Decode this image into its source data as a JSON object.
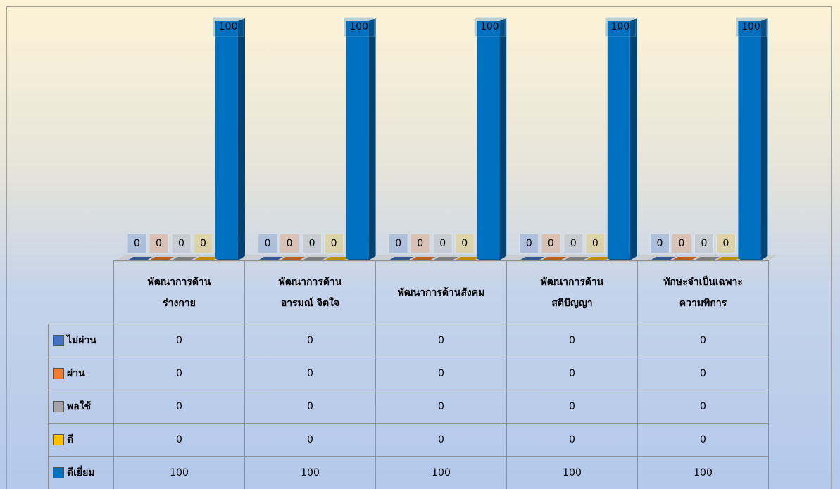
{
  "chart_data": {
    "type": "bar",
    "categories": [
      "พัฒนาการด้าน\nร่างกาย",
      "พัฒนาการด้าน\nอารมณ์ จิตใจ",
      "พัฒนาการด้านสังคม",
      "พัฒนาการด้าน\nสติปัญญา",
      "ทักษะจำเป็นเฉพาะ\nความพิการ"
    ],
    "series": [
      {
        "name": "ไม่ผ่าน",
        "color": "#4472c4",
        "values": [
          0,
          0,
          0,
          0,
          0
        ]
      },
      {
        "name": "ผ่าน",
        "color": "#ed7d31",
        "values": [
          0,
          0,
          0,
          0,
          0
        ]
      },
      {
        "name": "พอใช้",
        "color": "#a5a5a5",
        "values": [
          0,
          0,
          0,
          0,
          0
        ]
      },
      {
        "name": "ดี",
        "color": "#ffc000",
        "values": [
          0,
          0,
          0,
          0,
          0
        ]
      },
      {
        "name": "ดีเยี่ยม",
        "color": "#0070c0",
        "values": [
          100,
          100,
          100,
          100,
          100
        ]
      }
    ],
    "ylim": [
      0,
      100
    ]
  }
}
